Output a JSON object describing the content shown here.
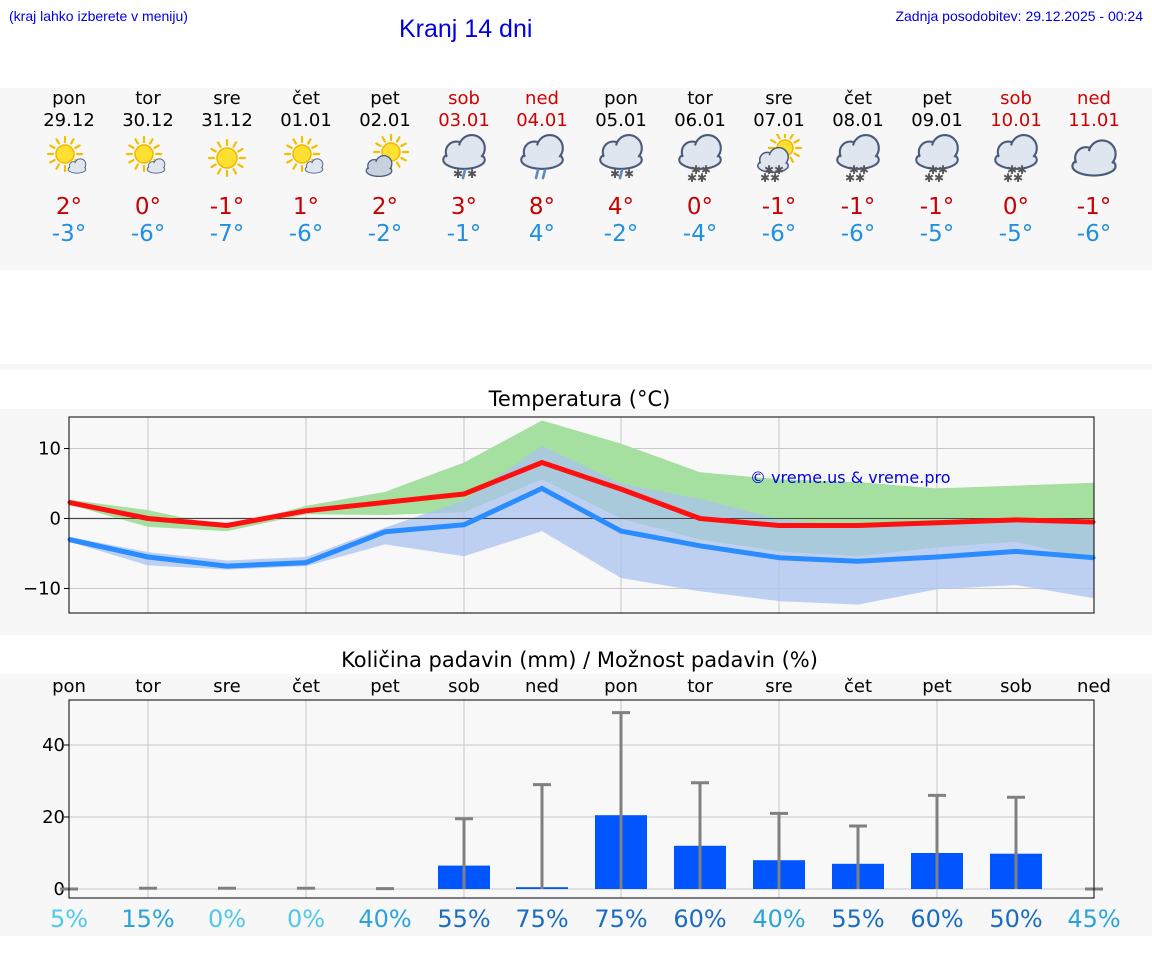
{
  "header": {
    "menu_hint": "(kraj lahko izberete v meniju)",
    "title": "Kranj 14 dni",
    "updated": "Zadnja posodobitev: 29.12.2025 - 00:24"
  },
  "days": [
    {
      "name": "pon",
      "date": "29.12",
      "weekend": false,
      "icon": "partly-cloudy-sun-icon",
      "tmax": "2°",
      "tmin": "-3°",
      "precip_chance": "5%"
    },
    {
      "name": "tor",
      "date": "30.12",
      "weekend": false,
      "icon": "partly-cloudy-sun-icon",
      "tmax": "0°",
      "tmin": "-6°",
      "precip_chance": "15%"
    },
    {
      "name": "sre",
      "date": "31.12",
      "weekend": false,
      "icon": "sun-icon",
      "tmax": "-1°",
      "tmin": "-7°",
      "precip_chance": "0%"
    },
    {
      "name": "čet",
      "date": "01.01",
      "weekend": false,
      "icon": "partly-cloudy-sun-icon",
      "tmax": "1°",
      "tmin": "-6°",
      "precip_chance": "0%"
    },
    {
      "name": "pet",
      "date": "02.01",
      "weekend": false,
      "icon": "sun-behind-cloud-icon",
      "tmax": "2°",
      "tmin": "-2°",
      "precip_chance": "40%"
    },
    {
      "name": "sob",
      "date": "03.01",
      "weekend": true,
      "icon": "cloud-sleet-icon",
      "tmax": "3°",
      "tmin": "-1°",
      "precip_chance": "55%"
    },
    {
      "name": "ned",
      "date": "04.01",
      "weekend": true,
      "icon": "cloud-rain-icon",
      "tmax": "8°",
      "tmin": "4°",
      "precip_chance": "75%"
    },
    {
      "name": "pon",
      "date": "05.01",
      "weekend": false,
      "icon": "cloud-sleet-icon",
      "tmax": "4°",
      "tmin": "-2°",
      "precip_chance": "75%"
    },
    {
      "name": "tor",
      "date": "06.01",
      "weekend": false,
      "icon": "cloud-snow-icon",
      "tmax": "0°",
      "tmin": "-4°",
      "precip_chance": "60%"
    },
    {
      "name": "sre",
      "date": "07.01",
      "weekend": false,
      "icon": "sun-cloud-snow-icon",
      "tmax": "-1°",
      "tmin": "-6°",
      "precip_chance": "40%"
    },
    {
      "name": "čet",
      "date": "08.01",
      "weekend": false,
      "icon": "cloud-snow-icon",
      "tmax": "-1°",
      "tmin": "-6°",
      "precip_chance": "55%"
    },
    {
      "name": "pet",
      "date": "09.01",
      "weekend": false,
      "icon": "cloud-snow-icon",
      "tmax": "-1°",
      "tmin": "-5°",
      "precip_chance": "60%"
    },
    {
      "name": "sob",
      "date": "10.01",
      "weekend": true,
      "icon": "cloud-snow-icon",
      "tmax": "0°",
      "tmin": "-5°",
      "precip_chance": "50%"
    },
    {
      "name": "ned",
      "date": "11.01",
      "weekend": true,
      "icon": "cloud-icon",
      "tmax": "-1°",
      "tmin": "-6°",
      "precip_chance": "45%"
    }
  ],
  "chart_data": [
    {
      "type": "line",
      "title": "Temperatura (°C)",
      "watermark": "© vreme.us & vreme.pro",
      "ylim": [
        -13.5,
        14.5
      ],
      "yticks": [
        -10,
        0,
        10
      ],
      "series": [
        {
          "name": "max",
          "color": "#ff1010",
          "values": [
            2.3,
            0,
            -1,
            1.1,
            2.3,
            3.5,
            8,
            4.2,
            0,
            -1,
            -1,
            -0.6,
            -0.2,
            -0.5
          ]
        },
        {
          "name": "min",
          "color": "#2a8cff",
          "values": [
            -3,
            -5.5,
            -6.8,
            -6.3,
            -1.9,
            -0.9,
            4.3,
            -1.8,
            -3.9,
            -5.6,
            -6.1,
            -5.5,
            -4.7,
            -5.6
          ]
        }
      ],
      "bands": [
        {
          "name": "max-range",
          "color": "#a6e0a0",
          "upper": [
            2.7,
            1.2,
            -1.2,
            1.8,
            3.8,
            8,
            14,
            10.7,
            6.6,
            5.6,
            5.2,
            4.3,
            4.7,
            5.1
          ],
          "lower": [
            2,
            -1.2,
            -1.8,
            0.6,
            0.5,
            0.9,
            5.6,
            0,
            -3,
            -4.7,
            -5.4,
            -4.1,
            -3.3,
            -6
          ]
        },
        {
          "name": "min-range",
          "color": "#a9c3ef",
          "upper": [
            -2.6,
            -4.8,
            -6,
            -5.5,
            -1.3,
            2.6,
            10.4,
            5,
            2.8,
            -0.1,
            -1.1,
            -0.6,
            -0.4,
            -0.8
          ],
          "lower": [
            -3.3,
            -6.7,
            -7.3,
            -6.8,
            -3.7,
            -5.4,
            -1.8,
            -8.5,
            -10.4,
            -11.8,
            -12.3,
            -10.1,
            -9.5,
            -11.4
          ]
        }
      ]
    },
    {
      "type": "bar",
      "title": "Količina padavin (mm) / Možnost padavin (%)",
      "categories": [
        "pon",
        "tor",
        "sre",
        "čet",
        "pet",
        "sob",
        "ned",
        "pon",
        "tor",
        "sre",
        "čet",
        "pet",
        "sob",
        "ned"
      ],
      "ylim": [
        -2.5,
        52.5
      ],
      "yticks": [
        0,
        20,
        40
      ],
      "values": [
        0,
        0,
        0,
        0,
        0,
        6.5,
        0.5,
        20.5,
        12,
        8,
        7,
        10,
        9.8,
        0
      ],
      "error_max": [
        0,
        0.2,
        0.2,
        0.2,
        0.1,
        19.5,
        29,
        49,
        29.5,
        21,
        17.5,
        26,
        25.5,
        0
      ],
      "precip_chance": [
        "5%",
        "15%",
        "0%",
        "0%",
        "40%",
        "55%",
        "75%",
        "75%",
        "60%",
        "40%",
        "55%",
        "60%",
        "50%",
        "45%"
      ],
      "precip_chance_colors": [
        "#50c8e8",
        "#2aa4d8",
        "#50c8e8",
        "#50c8e8",
        "#2aa4d8",
        "#1a6cc0",
        "#1a6cc0",
        "#1a6cc0",
        "#1a6cc0",
        "#2aa4d8",
        "#1a6cc0",
        "#1a6cc0",
        "#1a6cc0",
        "#2aa4d8"
      ]
    }
  ]
}
